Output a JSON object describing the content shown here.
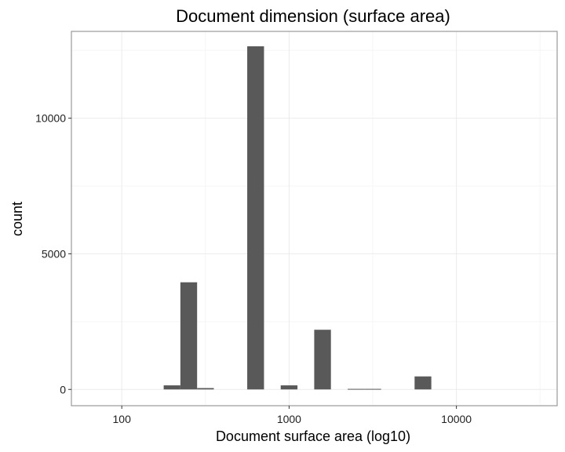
{
  "chart_data": {
    "type": "bar",
    "title": "Document dimension (surface area)",
    "xlabel": "Document surface area (log10)",
    "ylabel": "count",
    "x_scale": "log10",
    "xlim": [
      50,
      40000
    ],
    "ylim": [
      -600,
      13200
    ],
    "x_ticks": [
      100,
      1000,
      10000
    ],
    "x_tick_labels": [
      "100",
      "1000",
      "10000"
    ],
    "y_ticks": [
      0,
      5000,
      10000
    ],
    "y_tick_labels": [
      "0",
      "5000",
      "10000"
    ],
    "grid": true,
    "color": "#595959",
    "bars": [
      {
        "x_start": 178,
        "x_end": 224,
        "count": 150
      },
      {
        "x_start": 224,
        "x_end": 282,
        "count": 3950
      },
      {
        "x_start": 282,
        "x_end": 355,
        "count": 50
      },
      {
        "x_start": 562,
        "x_end": 708,
        "count": 12650
      },
      {
        "x_start": 891,
        "x_end": 1122,
        "count": 150
      },
      {
        "x_start": 1413,
        "x_end": 1778,
        "count": 2200
      },
      {
        "x_start": 2239,
        "x_end": 2818,
        "count": 20
      },
      {
        "x_start": 2818,
        "x_end": 3548,
        "count": 20
      },
      {
        "x_start": 5623,
        "x_end": 7079,
        "count": 480
      }
    ]
  }
}
